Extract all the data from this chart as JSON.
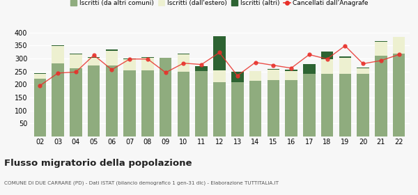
{
  "years": [
    "02",
    "03",
    "04",
    "05",
    "06",
    "07",
    "08",
    "09",
    "10",
    "11",
    "12",
    "13",
    "14",
    "15",
    "16",
    "17",
    "18",
    "19",
    "20",
    "21",
    "22"
  ],
  "iscritti_comuni": [
    222,
    280,
    262,
    272,
    272,
    255,
    255,
    302,
    250,
    252,
    208,
    208,
    213,
    218,
    218,
    242,
    242,
    240,
    240,
    310,
    318
  ],
  "iscritti_estero": [
    18,
    68,
    55,
    30,
    58,
    42,
    47,
    0,
    65,
    0,
    47,
    0,
    40,
    38,
    35,
    0,
    55,
    62,
    22,
    55,
    65
  ],
  "iscritti_altri": [
    5,
    3,
    3,
    3,
    5,
    3,
    3,
    0,
    3,
    18,
    132,
    42,
    0,
    3,
    3,
    36,
    30,
    5,
    3,
    3,
    0
  ],
  "cancellati": [
    196,
    244,
    248,
    313,
    257,
    298,
    298,
    246,
    282,
    277,
    323,
    234,
    285,
    274,
    263,
    315,
    298,
    349,
    280,
    292,
    315
  ],
  "color_comuni": "#8fac7e",
  "color_estero": "#edf0d0",
  "color_altri": "#2d6332",
  "color_cancellati": "#e8302a",
  "color_line_bg": "#f0a0a0",
  "title": "Flusso migratorio della popolazione",
  "subtitle": "COMUNE DI DUE CARRARE (PD) - Dati ISTAT (bilancio demografico 1 gen-31 dic) - Elaborazione TUTTITALIA.IT",
  "legend_labels": [
    "Iscritti (da altri comuni)",
    "Iscritti (dall'estero)",
    "Iscritti (altri)",
    "Cancellati dall’Anagrafe"
  ],
  "ylim": [
    0,
    420
  ],
  "yticks": [
    0,
    50,
    100,
    150,
    200,
    250,
    300,
    350,
    400
  ],
  "bg_color": "#f7f7f7"
}
